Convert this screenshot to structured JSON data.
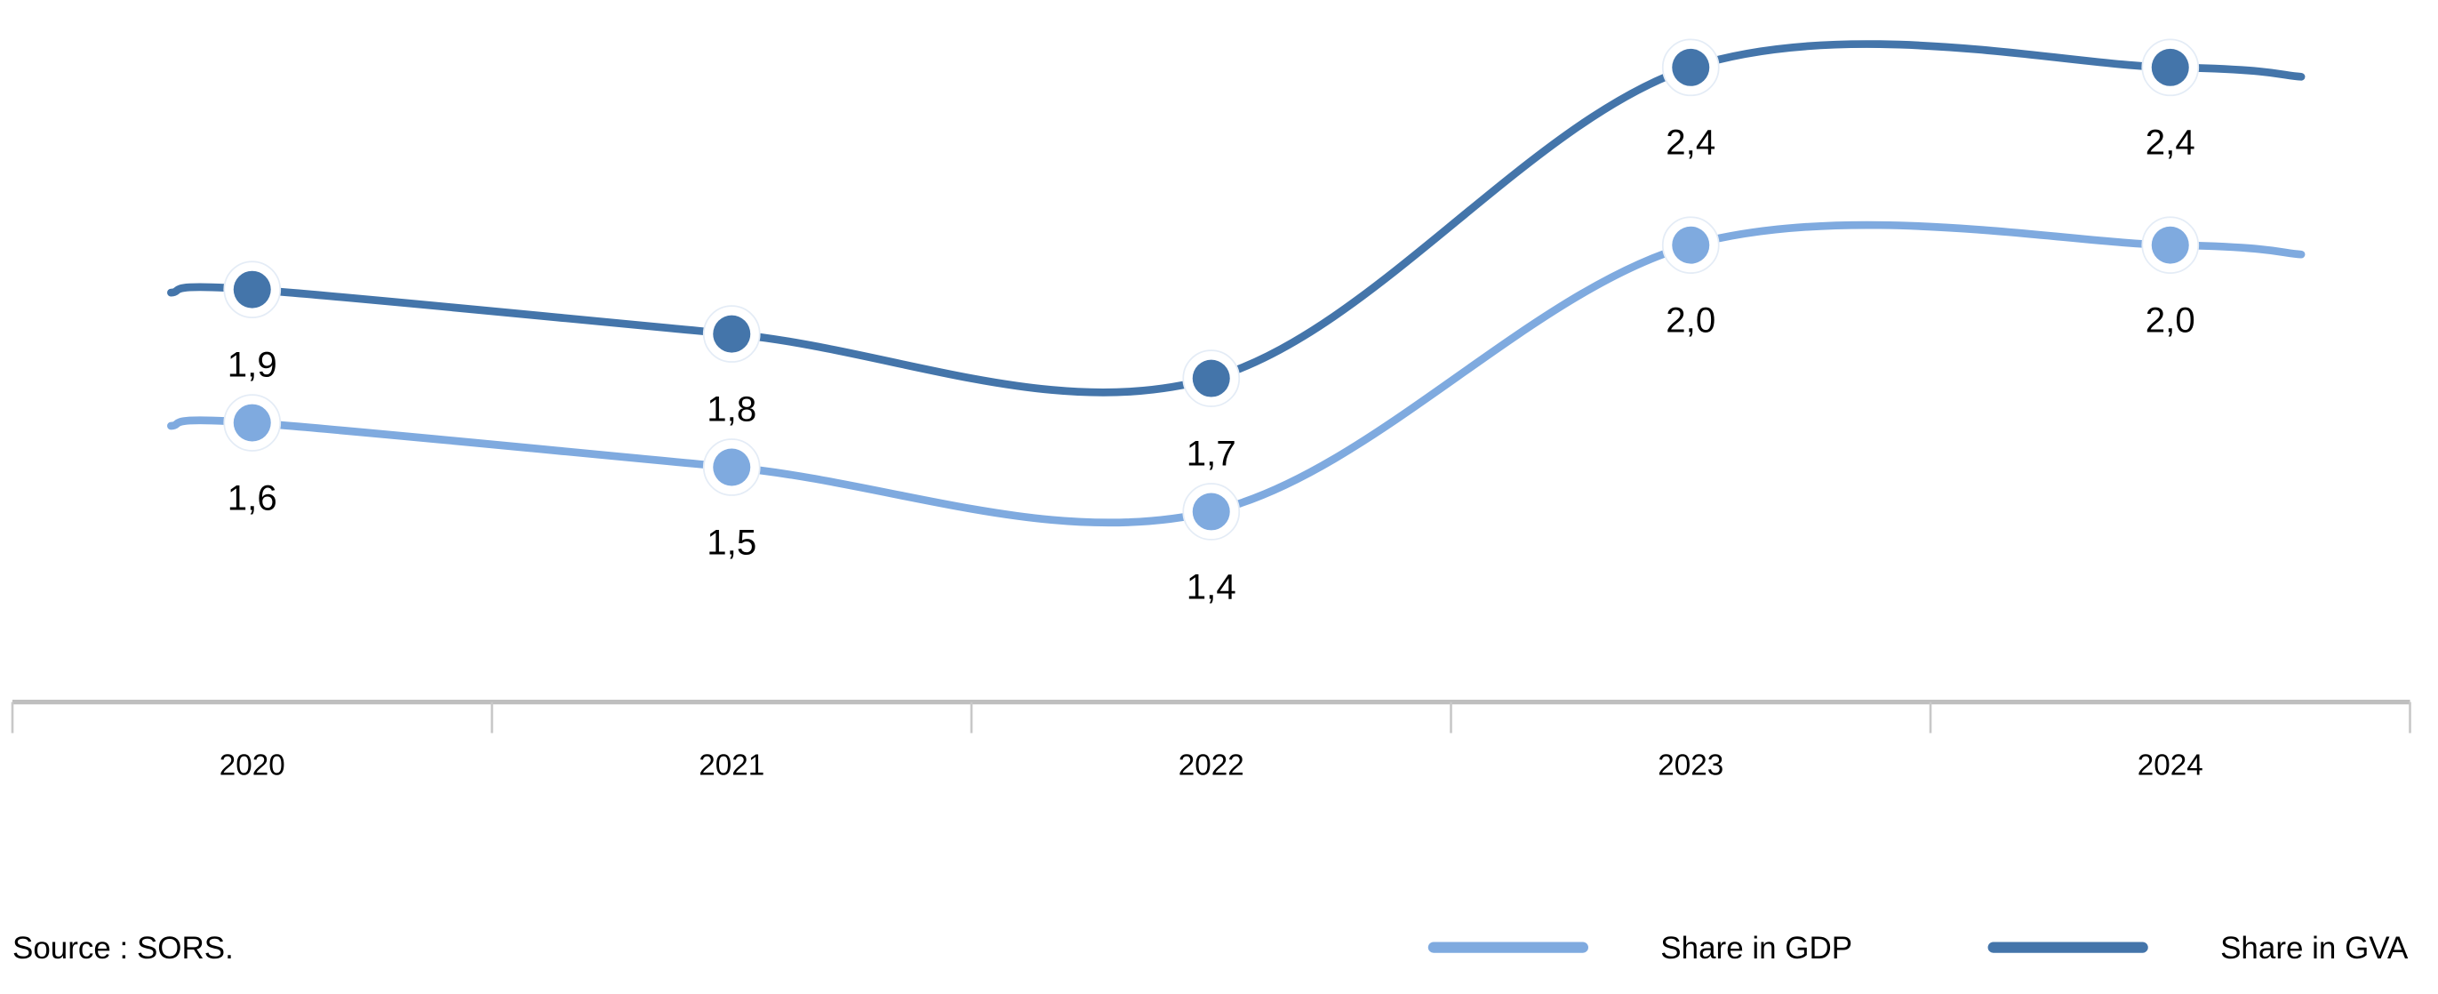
{
  "chart_data": {
    "type": "line",
    "title": "",
    "xlabel": "",
    "ylabel": "",
    "categories": [
      "2020",
      "2021",
      "2022",
      "2023",
      "2024"
    ],
    "series": [
      {
        "name": "Share in GDP",
        "color": "#7faadf",
        "values": [
          1.6,
          1.5,
          1.4,
          2.0,
          2.0
        ],
        "labels": [
          "1,6",
          "1,5",
          "1,4",
          "2,0",
          "2,0"
        ]
      },
      {
        "name": "Share in GVA",
        "color": "#4475aa",
        "values": [
          1.9,
          1.8,
          1.7,
          2.4,
          2.4
        ],
        "labels": [
          "1,9",
          "1,8",
          "1,7",
          "2,4",
          "2,4"
        ]
      }
    ],
    "grid": false,
    "legend_position": "bottom-right",
    "smooth": true
  },
  "source": "Source : SORS."
}
